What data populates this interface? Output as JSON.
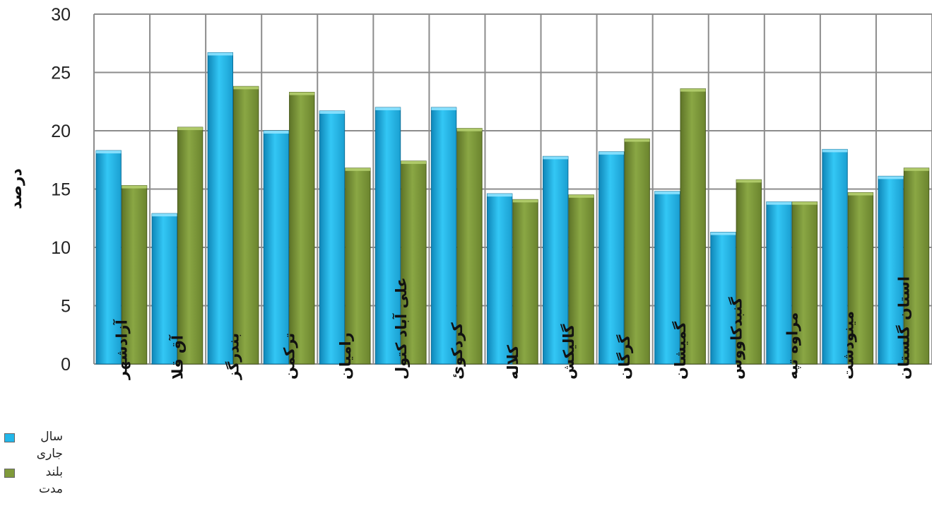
{
  "chart_data": {
    "type": "bar",
    "title": "",
    "xlabel": "",
    "ylabel": "درصد",
    "ylim": [
      0,
      30
    ],
    "yticks": [
      0,
      5,
      10,
      15,
      20,
      25,
      30
    ],
    "grid": true,
    "legend_position": "bottom-left",
    "categories": [
      "آزادشهر",
      "آق قلا",
      "بندرگز",
      "ترکمن",
      "رامیان",
      "علی آباد کتول",
      "کردکوئ",
      "کلاله",
      "گالیکش",
      "گرگان",
      "گمیشان",
      "گنبدکاووس",
      "مراوه تپه",
      "مینودشت",
      "استان گلستان"
    ],
    "series": [
      {
        "name": "سال جاری",
        "color": "#22b7ea",
        "values": [
          18.3,
          12.9,
          26.7,
          20.0,
          21.7,
          22.0,
          22.0,
          14.6,
          17.8,
          18.2,
          14.8,
          11.3,
          13.9,
          18.4,
          16.1
        ]
      },
      {
        "name": "بلند مدت",
        "color": "#7f9a3a",
        "values": [
          15.3,
          20.3,
          23.8,
          23.3,
          16.8,
          17.4,
          20.2,
          14.1,
          14.5,
          19.3,
          23.6,
          15.8,
          13.9,
          14.7,
          16.8
        ]
      }
    ]
  }
}
